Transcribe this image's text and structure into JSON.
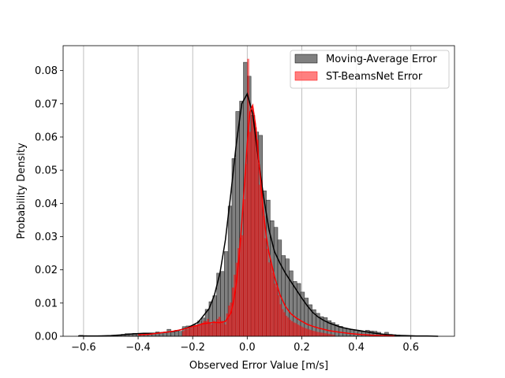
{
  "chart_data": {
    "type": "histogram",
    "xlabel": "Observed Error Value [m/s]",
    "ylabel": "Probability Density",
    "xlim": [
      -0.675,
      0.76
    ],
    "ylim": [
      0,
      0.0875
    ],
    "xticks": [
      -0.6,
      -0.4,
      -0.2,
      0.0,
      0.2,
      0.4,
      0.6
    ],
    "xtick_labels": [
      "−0.6",
      "−0.4",
      "−0.2",
      "0.0",
      "0.2",
      "0.4",
      "0.6"
    ],
    "yticks": [
      0.0,
      0.01,
      0.02,
      0.03,
      0.04,
      0.05,
      0.06,
      0.07,
      0.08
    ],
    "ytick_labels": [
      "0.00",
      "0.01",
      "0.02",
      "0.03",
      "0.04",
      "0.05",
      "0.06",
      "0.07",
      "0.08"
    ],
    "grid": "vertical",
    "legend_position": "top-right",
    "series": [
      {
        "name": "Moving-Average Error",
        "fill": "#808080",
        "stroke": "#000000",
        "kde_color": "#000000",
        "bin_width": 0.014,
        "bins_x": [
          -0.616,
          -0.602,
          -0.588,
          -0.574,
          -0.56,
          -0.546,
          -0.532,
          -0.518,
          -0.504,
          -0.49,
          -0.476,
          -0.462,
          -0.448,
          -0.434,
          -0.42,
          -0.406,
          -0.392,
          -0.378,
          -0.364,
          -0.35,
          -0.336,
          -0.322,
          -0.308,
          -0.294,
          -0.28,
          -0.266,
          -0.252,
          -0.238,
          -0.224,
          -0.21,
          -0.196,
          -0.182,
          -0.168,
          -0.154,
          -0.14,
          -0.126,
          -0.112,
          -0.098,
          -0.084,
          -0.07,
          -0.056,
          -0.042,
          -0.028,
          -0.014,
          0.0,
          0.014,
          0.028,
          0.042,
          0.056,
          0.07,
          0.084,
          0.098,
          0.112,
          0.126,
          0.14,
          0.154,
          0.168,
          0.182,
          0.196,
          0.21,
          0.224,
          0.238,
          0.252,
          0.266,
          0.28,
          0.294,
          0.308,
          0.322,
          0.336,
          0.35,
          0.364,
          0.378,
          0.392,
          0.406,
          0.42,
          0.434,
          0.448,
          0.462,
          0.476,
          0.49,
          0.504,
          0.518,
          0.532,
          0.546
        ],
        "densities": [
          0.0003,
          0.0002,
          0.0001,
          0.0001,
          0.0001,
          0.0002,
          0.0002,
          0.0002,
          0.0002,
          0.0003,
          0.0004,
          0.0006,
          0.0008,
          0.0008,
          0.0009,
          0.0008,
          0.0008,
          0.0009,
          0.0008,
          0.001,
          0.0013,
          0.0011,
          0.0013,
          0.0021,
          0.0013,
          0.0018,
          0.0015,
          0.0029,
          0.0031,
          0.0031,
          0.0034,
          0.0046,
          0.0055,
          0.0081,
          0.0104,
          0.0122,
          0.019,
          0.0195,
          0.0255,
          0.0392,
          0.0535,
          0.0677,
          0.0708,
          0.0825,
          0.0783,
          0.0665,
          0.0615,
          0.0605,
          0.0438,
          0.041,
          0.0348,
          0.0328,
          0.029,
          0.0243,
          0.0233,
          0.0197,
          0.0165,
          0.0159,
          0.0133,
          0.0115,
          0.0095,
          0.008,
          0.0069,
          0.0059,
          0.0056,
          0.0047,
          0.0041,
          0.0035,
          0.003,
          0.0025,
          0.0022,
          0.002,
          0.0018,
          0.0015,
          0.0014,
          0.0018,
          0.0016,
          0.0015,
          0.0012,
          0.0007,
          0.0012,
          0.0006,
          0.0005,
          0.0004
        ]
      },
      {
        "name": "ST-BeamsNet Error",
        "fill": "#ff0000",
        "stroke": "#ff0000",
        "kde_color": "#ff0000",
        "bin_width": 0.007,
        "bins_x": [
          -0.238,
          -0.231,
          -0.224,
          -0.217,
          -0.21,
          -0.203,
          -0.196,
          -0.189,
          -0.182,
          -0.175,
          -0.168,
          -0.161,
          -0.154,
          -0.147,
          -0.14,
          -0.133,
          -0.126,
          -0.119,
          -0.112,
          -0.105,
          -0.098,
          -0.091,
          -0.084,
          -0.077,
          -0.07,
          -0.063,
          -0.056,
          -0.049,
          -0.042,
          -0.035,
          -0.028,
          -0.021,
          -0.014,
          -0.007,
          0.0,
          0.007,
          0.014,
          0.021,
          0.028,
          0.035,
          0.042,
          0.049,
          0.056,
          0.063,
          0.07,
          0.077,
          0.084,
          0.091,
          0.098,
          0.105,
          0.112,
          0.119,
          0.126,
          0.133,
          0.14,
          0.147,
          0.154,
          0.161,
          0.168,
          0.175,
          0.182,
          0.189,
          0.196,
          0.203,
          0.21,
          0.217,
          0.224,
          0.231,
          0.238,
          0.245,
          0.252,
          0.259,
          0.266,
          0.273,
          0.28,
          0.287,
          0.294,
          0.301,
          0.308,
          0.315
        ],
        "densities": [
          0.0015,
          0.0018,
          0.002,
          0.0022,
          0.0024,
          0.0026,
          0.003,
          0.0031,
          0.0033,
          0.0035,
          0.004,
          0.0046,
          0.0045,
          0.0052,
          0.0039,
          0.0035,
          0.0046,
          0.0041,
          0.0052,
          0.0058,
          0.0046,
          0.0045,
          0.0035,
          0.0068,
          0.0092,
          0.0101,
          0.0146,
          0.0185,
          0.0221,
          0.0265,
          0.0296,
          0.0304,
          0.0412,
          0.0518,
          0.0835,
          0.0615,
          0.0693,
          0.0648,
          0.0629,
          0.0591,
          0.0456,
          0.0469,
          0.0362,
          0.0295,
          0.0263,
          0.0222,
          0.0218,
          0.0191,
          0.0158,
          0.0148,
          0.0123,
          0.0096,
          0.0081,
          0.0072,
          0.0061,
          0.0056,
          0.0049,
          0.0045,
          0.0041,
          0.0039,
          0.0035,
          0.0032,
          0.0029,
          0.0026,
          0.0024,
          0.0022,
          0.002,
          0.0018,
          0.0016,
          0.0015,
          0.0013,
          0.0012,
          0.0011,
          0.001,
          0.0009,
          0.0008,
          0.0007,
          0.0006,
          0.0005,
          0.0004
        ]
      }
    ],
    "kde_curves": [
      {
        "series": "Moving-Average Error",
        "x": [
          -0.62,
          -0.58,
          -0.54,
          -0.5,
          -0.46,
          -0.42,
          -0.38,
          -0.34,
          -0.3,
          -0.26,
          -0.22,
          -0.18,
          -0.14,
          -0.12,
          -0.1,
          -0.08,
          -0.06,
          -0.04,
          -0.02,
          0.0,
          0.02,
          0.04,
          0.06,
          0.08,
          0.1,
          0.12,
          0.14,
          0.16,
          0.18,
          0.2,
          0.22,
          0.24,
          0.26,
          0.28,
          0.3,
          0.34,
          0.38,
          0.42,
          0.46,
          0.5,
          0.54,
          0.58,
          0.62,
          0.66,
          0.7
        ],
        "y": [
          0.0001,
          0.0001,
          0.0001,
          0.0002,
          0.0004,
          0.0007,
          0.0009,
          0.0009,
          0.0012,
          0.0016,
          0.0025,
          0.0042,
          0.0083,
          0.0125,
          0.019,
          0.029,
          0.043,
          0.058,
          0.07,
          0.073,
          0.067,
          0.054,
          0.042,
          0.032,
          0.0255,
          0.022,
          0.019,
          0.0165,
          0.014,
          0.0115,
          0.0092,
          0.0072,
          0.0058,
          0.0048,
          0.004,
          0.0028,
          0.0021,
          0.0016,
          0.001,
          0.0006,
          0.0003,
          0.0002,
          0.0001,
          0.0001,
          0.0
        ]
      },
      {
        "series": "ST-BeamsNet Error",
        "x": [
          -0.4,
          -0.36,
          -0.32,
          -0.28,
          -0.24,
          -0.2,
          -0.16,
          -0.12,
          -0.1,
          -0.08,
          -0.06,
          -0.05,
          -0.04,
          -0.03,
          -0.02,
          -0.01,
          0.0,
          0.01,
          0.02,
          0.03,
          0.04,
          0.05,
          0.06,
          0.07,
          0.08,
          0.1,
          0.12,
          0.14,
          0.16,
          0.18,
          0.2,
          0.22,
          0.24,
          0.26,
          0.28,
          0.3,
          0.34,
          0.38,
          0.42,
          0.46,
          0.5,
          0.54
        ],
        "y": [
          0.0004,
          0.0006,
          0.001,
          0.0014,
          0.002,
          0.0029,
          0.0038,
          0.0042,
          0.0041,
          0.0045,
          0.007,
          0.0105,
          0.016,
          0.024,
          0.034,
          0.046,
          0.058,
          0.0675,
          0.0695,
          0.064,
          0.055,
          0.046,
          0.037,
          0.03,
          0.025,
          0.018,
          0.0125,
          0.009,
          0.0068,
          0.0055,
          0.0045,
          0.0036,
          0.003,
          0.0025,
          0.0021,
          0.0017,
          0.0012,
          0.0008,
          0.0005,
          0.0003,
          0.0002,
          0.0001
        ]
      }
    ]
  }
}
